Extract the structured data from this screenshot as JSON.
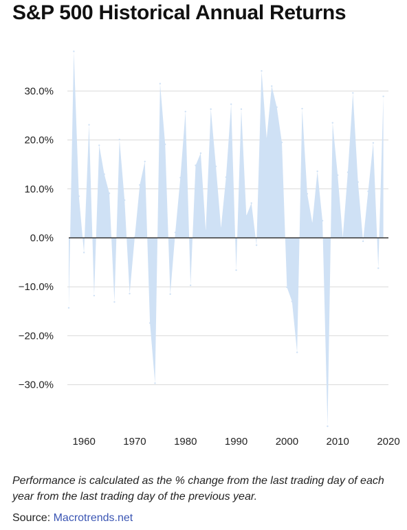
{
  "title": "S&P 500 Historical Annual Returns",
  "note": "Performance is calculated as the % change from the last trading day of each year from the last trading day of the previous year.",
  "source": {
    "label": "Source:",
    "link_text": "Macrotrends.net"
  },
  "colors": {
    "area_fill": "#cfe1f5",
    "gridline": "#d9d9d9",
    "zero_line": "#333333",
    "link": "#3a55b3"
  },
  "chart_data": {
    "type": "area",
    "title": "S&P 500 Historical Annual Returns",
    "xlabel": "",
    "ylabel": "",
    "grid": true,
    "xlim": [
      1957,
      2020
    ],
    "ylim": [
      -38,
      38
    ],
    "x_ticks": [
      "1960",
      "1970",
      "1980",
      "1990",
      "2000",
      "2010",
      "2020"
    ],
    "y_ticks": [
      {
        "value": 30,
        "label": "30.0%"
      },
      {
        "value": 20,
        "label": "20.0%"
      },
      {
        "value": 10,
        "label": "10.0%"
      },
      {
        "value": 0,
        "label": "0.0%"
      },
      {
        "value": -10,
        "label": "−10.0%"
      },
      {
        "value": -20,
        "label": "−20.0%"
      },
      {
        "value": -30,
        "label": "−30.0%"
      }
    ],
    "x": [
      1957,
      1958,
      1959,
      1960,
      1961,
      1962,
      1963,
      1964,
      1965,
      1966,
      1967,
      1968,
      1969,
      1970,
      1971,
      1972,
      1973,
      1974,
      1975,
      1976,
      1977,
      1978,
      1979,
      1980,
      1981,
      1982,
      1983,
      1984,
      1985,
      1986,
      1987,
      1988,
      1989,
      1990,
      1991,
      1992,
      1993,
      1994,
      1995,
      1996,
      1997,
      1998,
      1999,
      2000,
      2001,
      2002,
      2003,
      2004,
      2005,
      2006,
      2007,
      2008,
      2009,
      2010,
      2011,
      2012,
      2013,
      2014,
      2015,
      2016,
      2017,
      2018,
      2019
    ],
    "values": [
      -14.3,
      38.1,
      8.5,
      -3.0,
      23.1,
      -11.8,
      18.9,
      13.0,
      9.1,
      -13.1,
      20.1,
      7.7,
      -11.4,
      0.1,
      10.8,
      15.6,
      -17.4,
      -29.7,
      31.5,
      19.1,
      -11.5,
      1.1,
      12.3,
      25.8,
      -9.7,
      14.8,
      17.3,
      1.4,
      26.3,
      14.6,
      2.0,
      12.4,
      27.3,
      -6.6,
      26.3,
      4.5,
      7.1,
      -1.5,
      34.1,
      20.3,
      31.0,
      26.7,
      19.5,
      -10.1,
      -13.0,
      -23.4,
      26.4,
      9.0,
      3.0,
      13.6,
      3.5,
      -38.5,
      23.5,
      12.8,
      0.0,
      13.4,
      29.6,
      11.4,
      -0.7,
      9.5,
      19.4,
      -6.2,
      28.9
    ]
  }
}
